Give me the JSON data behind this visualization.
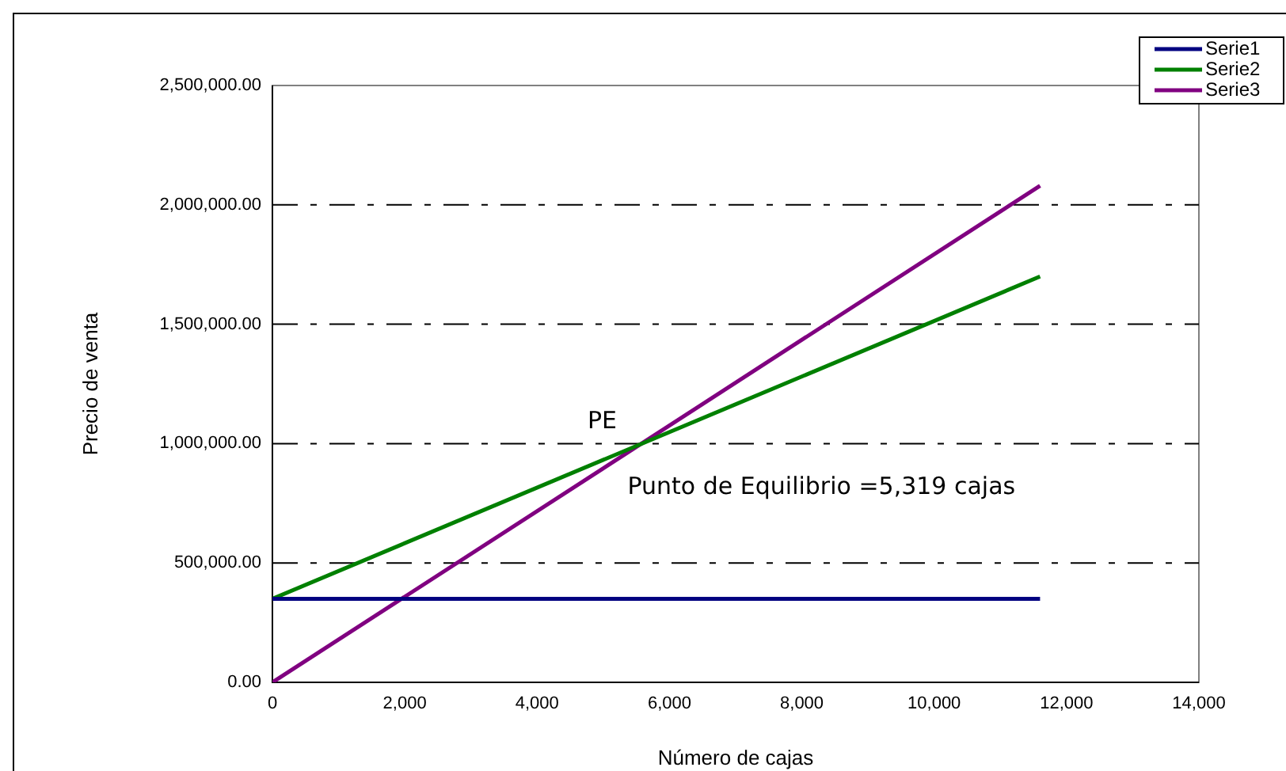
{
  "chart_data": {
    "type": "line",
    "xlabel": "Número de cajas",
    "ylabel": "Precio de venta",
    "x": [
      0,
      11600
    ],
    "series": [
      {
        "name": "Serie1",
        "color": "#000080",
        "values": [
          350000,
          350000
        ]
      },
      {
        "name": "Serie2",
        "color": "#008000",
        "values": [
          350000,
          1700000
        ]
      },
      {
        "name": "Serie3",
        "color": "#800080",
        "values": [
          0,
          2080000
        ]
      }
    ],
    "xlim": [
      0,
      14000
    ],
    "xticks": [
      0,
      {
        "value": 2000,
        "label": "2,000"
      },
      {
        "value": 4000,
        "label": "4,000"
      },
      {
        "value": 6000,
        "label": "6,000"
      },
      {
        "value": 8000,
        "label": "8,000"
      },
      {
        "value": 10000,
        "label": "10,000"
      },
      {
        "value": 12000,
        "label": "12,000"
      },
      {
        "value": 14000,
        "label": "14,000"
      }
    ],
    "ylim": [
      0,
      2500000
    ],
    "yticks": [
      {
        "value": 0,
        "label": "0.00"
      },
      {
        "value": 500000,
        "label": "500,000.00"
      },
      {
        "value": 1000000,
        "label": "1,000,000.00"
      },
      {
        "value": 1500000,
        "label": "1,500,000.00"
      },
      {
        "value": 2000000,
        "label": "2,000,000.00"
      },
      {
        "value": 2500000,
        "label": "2,500,000.00"
      }
    ],
    "annotations": [
      {
        "text": "PE",
        "x": 5319,
        "y": 1000000
      },
      {
        "text": "Punto de Equilibrio =5,319 cajas",
        "x": 5319,
        "y": 1000000
      }
    ],
    "grid": "y",
    "legend": "top right",
    "marker": "none",
    "line_style": "solid"
  }
}
